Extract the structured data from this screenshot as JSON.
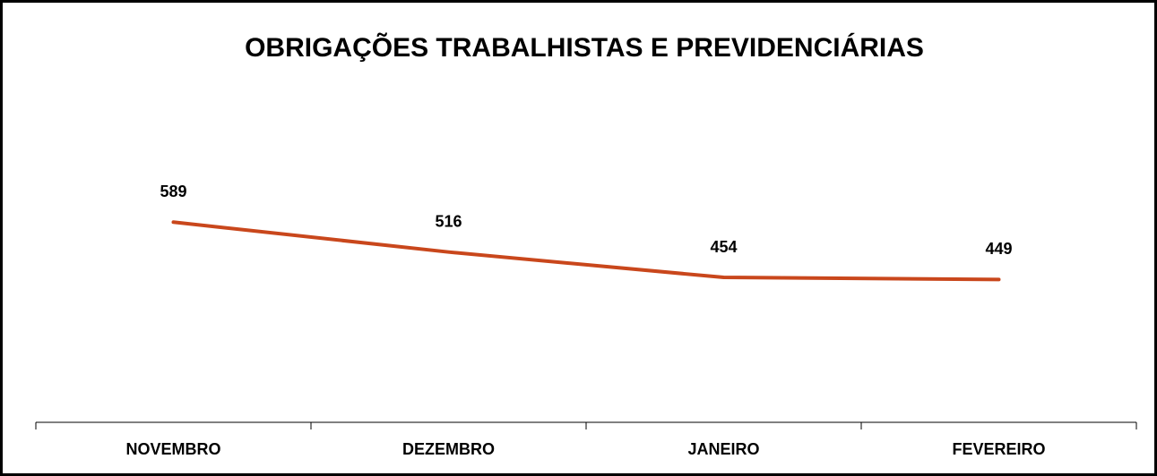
{
  "chart_data": {
    "type": "line",
    "title": "OBRIGAÇÕES TRABALHISTAS E PREVIDENCIÁRIAS",
    "categories": [
      "NOVEMBRO",
      "DEZEMBRO",
      "JANEIRO",
      "FEVEREIRO"
    ],
    "values": [
      589,
      516,
      454,
      449
    ],
    "color": "#c9471c",
    "ylim": [
      100,
      900
    ]
  }
}
